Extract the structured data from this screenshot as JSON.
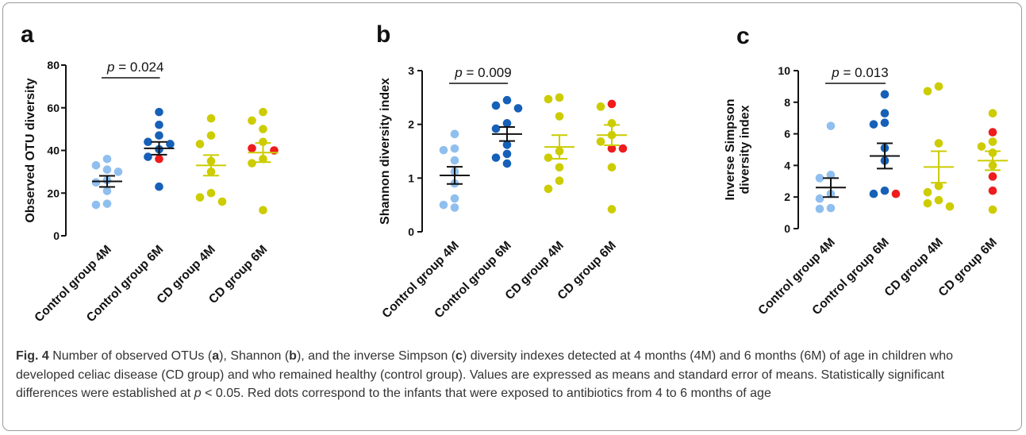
{
  "figure": {
    "colors": {
      "control_4m": "#8fbfee",
      "control_6m": "#1660b8",
      "cd": "#cccc00",
      "antibiotic": "#ee1c1c"
    }
  },
  "caption": {
    "fig_label": "Fig. 4",
    "text_1": " Number of observed OTUs (",
    "a": "a",
    "text_2": "), Shannon (",
    "b": "b",
    "text_3": "), and the inverse Simpson (",
    "c": "c",
    "text_4": ") diversity indexes detected at 4 months (4M) and 6 months (6M) of age in children who developed celiac disease (CD group) and who remained healthy (control group). Values are expressed as means and standard error of means. Statistically significant differences were established at ",
    "p": "p",
    "text_5": " < 0.05. Red dots correspond to the infants that were exposed to antibiotics from 4 to 6 months of age"
  },
  "chart_data": [
    {
      "panel": "a",
      "type": "scatter",
      "ylabel": "Observed OTU diversity",
      "ylim": [
        0,
        80
      ],
      "yticks": [
        0,
        20,
        40,
        60,
        80
      ],
      "categories": [
        "Control group 4M",
        "Control group 6M",
        "CD group 4M",
        "CD group 6M"
      ],
      "significance": {
        "label": "p",
        "text": " = 0.024",
        "between": [
          0,
          1
        ]
      },
      "groups": [
        {
          "mean": 25.5,
          "sem": 2.6,
          "points": [
            36,
            33,
            31,
            30,
            26,
            25,
            21,
            15,
            14.5
          ],
          "red": []
        },
        {
          "mean": 41,
          "sem": 3.0,
          "points": [
            58,
            52,
            47,
            44,
            43,
            40.5,
            37,
            23
          ],
          "red": [
            36
          ]
        },
        {
          "mean": 33,
          "sem": 4.8,
          "points": [
            55,
            47,
            43,
            35,
            30,
            20,
            18,
            16
          ],
          "red": []
        },
        {
          "mean": 39,
          "sem": 4.5,
          "points": [
            58,
            54,
            50,
            44,
            36,
            34,
            12
          ],
          "red": [
            41,
            40
          ]
        }
      ]
    },
    {
      "panel": "b",
      "type": "scatter",
      "ylabel": "Shannon diversity index",
      "ylim": [
        0,
        3
      ],
      "yticks": [
        0,
        1,
        2,
        3
      ],
      "categories": [
        "Control group 4M",
        "Control group 6M",
        "CD group 4M",
        "CD group 6M"
      ],
      "significance": {
        "label": "p",
        "text": " = 0.009",
        "between": [
          0,
          1
        ]
      },
      "groups": [
        {
          "mean": 1.05,
          "sem": 0.16,
          "points": [
            1.82,
            1.55,
            1.52,
            1.33,
            1.12,
            0.9,
            0.62,
            0.5,
            0.45
          ],
          "red": []
        },
        {
          "mean": 1.82,
          "sem": 0.13,
          "points": [
            2.45,
            2.35,
            2.3,
            2.02,
            1.92,
            1.62,
            1.45,
            1.38,
            1.27
          ],
          "red": []
        },
        {
          "mean": 1.58,
          "sem": 0.22,
          "points": [
            2.5,
            2.47,
            2.15,
            1.5,
            1.38,
            1.2,
            0.95,
            0.8
          ],
          "red": []
        },
        {
          "mean": 1.8,
          "sem": 0.19,
          "points": [
            2.33,
            2.02,
            1.8,
            1.68,
            1.2,
            0.42
          ],
          "red": [
            2.38,
            1.55,
            1.55
          ]
        }
      ]
    },
    {
      "panel": "c",
      "type": "scatter",
      "ylabel": "Inverse Simpson diversity index",
      "ylim": [
        0,
        10
      ],
      "yticks": [
        0,
        2,
        4,
        6,
        8,
        10
      ],
      "categories": [
        "Control group 4M",
        "Control group 6M",
        "CD group 4M",
        "CD group 6M"
      ],
      "significance": {
        "label": "p",
        "text": " = 0.013",
        "between": [
          0,
          1
        ]
      },
      "groups": [
        {
          "mean": 2.6,
          "sem": 0.6,
          "points": [
            6.5,
            3.4,
            3.2,
            2.2,
            1.9,
            1.3,
            1.25
          ],
          "red": []
        },
        {
          "mean": 4.6,
          "sem": 0.8,
          "points": [
            8.5,
            7.3,
            6.7,
            6.6,
            5.1,
            4.3,
            2.4,
            2.2
          ],
          "red": [
            2.2
          ]
        },
        {
          "mean": 3.9,
          "sem": 1.0,
          "points": [
            9.0,
            8.7,
            5.4,
            2.7,
            2.3,
            1.8,
            1.6,
            1.4
          ],
          "red": []
        },
        {
          "mean": 4.3,
          "sem": 0.6,
          "points": [
            7.3,
            5.5,
            5.2,
            4.8,
            4.0,
            1.2
          ],
          "red": [
            6.1,
            3.3,
            2.4
          ]
        }
      ]
    }
  ]
}
